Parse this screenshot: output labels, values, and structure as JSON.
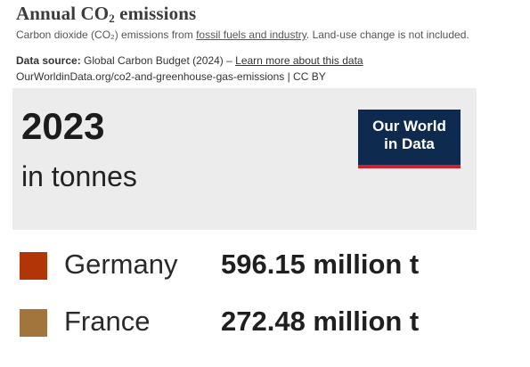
{
  "header": {
    "title_main": "Annual CO",
    "title_sub": "2",
    "title_rest": " emissions",
    "subtitle_pre": "Carbon dioxide (CO₂) emissions from ",
    "subtitle_link": "fossil fuels and industry",
    "subtitle_post": ". Land-use change is not included.",
    "source_label": "Data source:",
    "source_text": " Global Carbon Budget (2024) – ",
    "source_link": "Learn more about this data",
    "url_line": "OurWorldinData.org/co2-and-greenhouse-gas-emissions | CC BY"
  },
  "panel": {
    "year": "2023",
    "unit": "in tonnes",
    "logo_line1": "Our World",
    "logo_line2": "in Data",
    "logo_bg": "#0f2a4f",
    "logo_accent": "#cf2031",
    "bg": "#ececec"
  },
  "entries": [
    {
      "name": "Germany",
      "value": "596.15 million t",
      "color": "#b13507"
    },
    {
      "name": "France",
      "value": "272.48 million t",
      "color": "#a2753c"
    }
  ]
}
